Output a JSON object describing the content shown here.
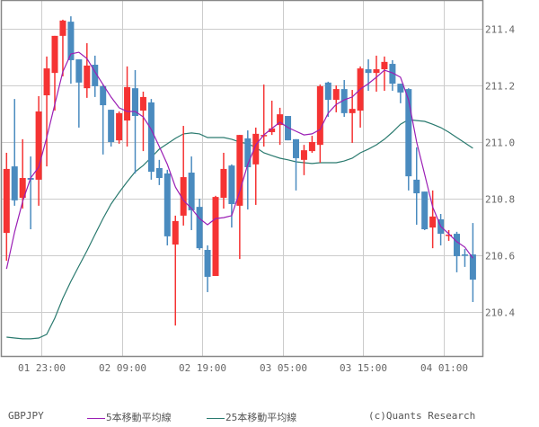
{
  "symbol": "GBPJPY",
  "copyright": "(c)Quants Research",
  "legend": [
    {
      "label": "5本移動平均線",
      "color": "#9b1fb5"
    },
    {
      "label": "25本移動平均線",
      "color": "#2a7a6f"
    }
  ],
  "colors": {
    "up": "#f53333",
    "down": "#4a8bbf",
    "grid": "#cccccc",
    "frame": "#888888",
    "ma5": "#9b1fb5",
    "ma25": "#2a7a6f"
  },
  "chart_data": {
    "type": "candlestick",
    "title": "GBPJPY",
    "xlabel": "",
    "ylabel": "",
    "ylim": [
      210.25,
      211.5
    ],
    "y_ticks": [
      210.4,
      210.6,
      210.8,
      211.0,
      211.2,
      211.4
    ],
    "x_ticks": [
      {
        "index": 5,
        "label": "01 23:00"
      },
      {
        "index": 15,
        "label": "02 09:00"
      },
      {
        "index": 25,
        "label": "02 19:00"
      },
      {
        "index": 35,
        "label": "03 05:00"
      },
      {
        "index": 45,
        "label": "03 15:00"
      },
      {
        "index": 55,
        "label": "04 01:00"
      }
    ],
    "grid": true,
    "legend_position": "bottom",
    "interval": "1h",
    "candles": [
      {
        "o": 210.679,
        "h": 210.962,
        "l": 210.581,
        "c": 210.905
      },
      {
        "o": 210.914,
        "h": 211.152,
        "l": 210.775,
        "c": 210.794
      },
      {
        "o": 210.803,
        "h": 211.01,
        "l": 210.765,
        "c": 210.873
      },
      {
        "o": 210.873,
        "h": 210.949,
        "l": 210.692,
        "c": 210.867
      },
      {
        "o": 210.867,
        "h": 211.162,
        "l": 210.775,
        "c": 211.108
      },
      {
        "o": 211.165,
        "h": 211.302,
        "l": 210.914,
        "c": 211.26
      },
      {
        "o": 211.244,
        "h": 211.375,
        "l": 211.111,
        "c": 211.375
      },
      {
        "o": 211.375,
        "h": 211.432,
        "l": 211.232,
        "c": 211.429
      },
      {
        "o": 211.425,
        "h": 211.444,
        "l": 211.206,
        "c": 211.289
      },
      {
        "o": 211.292,
        "h": 211.292,
        "l": 211.051,
        "c": 211.21
      },
      {
        "o": 211.19,
        "h": 211.349,
        "l": 211.156,
        "c": 211.27
      },
      {
        "o": 211.273,
        "h": 211.305,
        "l": 211.159,
        "c": 211.197
      },
      {
        "o": 211.197,
        "h": 211.203,
        "l": 210.956,
        "c": 211.13
      },
      {
        "o": 211.114,
        "h": 211.114,
        "l": 210.984,
        "c": 211.0
      },
      {
        "o": 211.006,
        "h": 211.108,
        "l": 210.994,
        "c": 211.102
      },
      {
        "o": 211.076,
        "h": 211.267,
        "l": 210.984,
        "c": 211.194
      },
      {
        "o": 211.19,
        "h": 211.254,
        "l": 210.889,
        "c": 211.092
      },
      {
        "o": 211.111,
        "h": 211.178,
        "l": 210.968,
        "c": 211.159
      },
      {
        "o": 211.14,
        "h": 211.152,
        "l": 210.867,
        "c": 210.895
      },
      {
        "o": 210.908,
        "h": 210.937,
        "l": 210.848,
        "c": 210.873
      },
      {
        "o": 210.889,
        "h": 210.902,
        "l": 210.635,
        "c": 210.667
      },
      {
        "o": 210.638,
        "h": 210.74,
        "l": 210.352,
        "c": 210.721
      },
      {
        "o": 210.74,
        "h": 211.057,
        "l": 210.705,
        "c": 210.876
      },
      {
        "o": 210.892,
        "h": 210.949,
        "l": 210.689,
        "c": 210.759
      },
      {
        "o": 210.771,
        "h": 210.8,
        "l": 210.619,
        "c": 210.625
      },
      {
        "o": 210.619,
        "h": 210.635,
        "l": 210.47,
        "c": 210.524
      },
      {
        "o": 210.527,
        "h": 210.81,
        "l": 210.527,
        "c": 210.806
      },
      {
        "o": 210.803,
        "h": 210.962,
        "l": 210.765,
        "c": 210.905
      },
      {
        "o": 210.917,
        "h": 210.921,
        "l": 210.698,
        "c": 210.781
      },
      {
        "o": 210.775,
        "h": 211.025,
        "l": 210.587,
        "c": 211.025
      },
      {
        "o": 211.013,
        "h": 211.041,
        "l": 210.762,
        "c": 210.911
      },
      {
        "o": 210.921,
        "h": 211.051,
        "l": 210.778,
        "c": 211.029
      },
      {
        "o": 211.022,
        "h": 211.203,
        "l": 210.984,
        "c": 211.025
      },
      {
        "o": 211.035,
        "h": 211.146,
        "l": 211.025,
        "c": 211.048
      },
      {
        "o": 211.06,
        "h": 211.121,
        "l": 210.99,
        "c": 211.098
      },
      {
        "o": 211.092,
        "h": 211.092,
        "l": 211.006,
        "c": 211.006
      },
      {
        "o": 211.01,
        "h": 211.01,
        "l": 210.829,
        "c": 210.943
      },
      {
        "o": 210.937,
        "h": 210.99,
        "l": 210.883,
        "c": 210.971
      },
      {
        "o": 210.968,
        "h": 211.022,
        "l": 210.962,
        "c": 211.0
      },
      {
        "o": 210.99,
        "h": 211.203,
        "l": 210.927,
        "c": 211.197
      },
      {
        "o": 211.21,
        "h": 211.213,
        "l": 211.089,
        "c": 211.149
      },
      {
        "o": 211.149,
        "h": 211.2,
        "l": 211.105,
        "c": 211.187
      },
      {
        "o": 211.187,
        "h": 211.219,
        "l": 211.089,
        "c": 211.102
      },
      {
        "o": 211.102,
        "h": 211.184,
        "l": 210.997,
        "c": 211.117
      },
      {
        "o": 211.111,
        "h": 211.267,
        "l": 211.051,
        "c": 211.26
      },
      {
        "o": 211.257,
        "h": 211.292,
        "l": 211.181,
        "c": 211.244
      },
      {
        "o": 211.244,
        "h": 211.305,
        "l": 211.178,
        "c": 211.257
      },
      {
        "o": 211.257,
        "h": 211.302,
        "l": 211.181,
        "c": 211.283
      },
      {
        "o": 211.276,
        "h": 211.289,
        "l": 211.181,
        "c": 211.206
      },
      {
        "o": 211.206,
        "h": 211.206,
        "l": 211.137,
        "c": 211.175
      },
      {
        "o": 211.187,
        "h": 211.19,
        "l": 210.829,
        "c": 210.879
      },
      {
        "o": 210.867,
        "h": 210.981,
        "l": 210.708,
        "c": 210.819
      },
      {
        "o": 210.825,
        "h": 210.825,
        "l": 210.689,
        "c": 210.692
      },
      {
        "o": 210.698,
        "h": 210.829,
        "l": 210.625,
        "c": 210.737
      },
      {
        "o": 210.727,
        "h": 210.746,
        "l": 210.635,
        "c": 210.676
      },
      {
        "o": 210.67,
        "h": 210.689,
        "l": 210.651,
        "c": 210.673
      },
      {
        "o": 210.676,
        "h": 210.683,
        "l": 210.54,
        "c": 210.597
      },
      {
        "o": 210.603,
        "h": 210.622,
        "l": 210.559,
        "c": 210.6
      },
      {
        "o": 210.603,
        "h": 210.714,
        "l": 210.435,
        "c": 210.514
      }
    ],
    "series": [
      {
        "name": "5本移動平均線",
        "values": [
          210.552,
          210.683,
          210.79,
          210.873,
          210.911,
          211.016,
          211.133,
          211.248,
          211.311,
          211.317,
          211.295,
          211.248,
          211.203,
          211.159,
          211.121,
          211.108,
          211.108,
          211.089,
          211.044,
          210.984,
          210.921,
          210.841,
          210.794,
          210.765,
          210.73,
          210.708,
          210.73,
          210.733,
          210.74,
          210.825,
          210.921,
          210.99,
          211.025,
          211.048,
          211.07,
          211.051,
          211.038,
          211.025,
          211.029,
          211.044,
          211.102,
          211.133,
          211.149,
          211.159,
          211.187,
          211.206,
          211.229,
          211.254,
          211.244,
          211.229,
          211.149,
          211.0,
          210.886,
          210.771,
          210.702,
          210.676,
          210.648,
          210.629,
          210.59
        ]
      },
      {
        "name": "25本移動平均線",
        "values": [
          210.311,
          210.308,
          210.305,
          210.305,
          210.308,
          210.321,
          210.378,
          210.448,
          210.508,
          210.562,
          210.616,
          210.673,
          210.73,
          210.781,
          210.822,
          210.86,
          210.895,
          210.917,
          210.946,
          210.975,
          210.994,
          211.013,
          211.029,
          211.032,
          211.029,
          211.016,
          211.016,
          211.016,
          211.01,
          211.0,
          210.994,
          210.981,
          210.962,
          210.952,
          210.943,
          210.937,
          210.93,
          210.927,
          210.924,
          210.927,
          210.927,
          210.927,
          210.933,
          210.943,
          210.962,
          210.975,
          210.99,
          211.01,
          211.035,
          211.063,
          211.079,
          211.076,
          211.073,
          211.063,
          211.051,
          211.035,
          211.016,
          210.997,
          210.978
        ]
      }
    ]
  }
}
